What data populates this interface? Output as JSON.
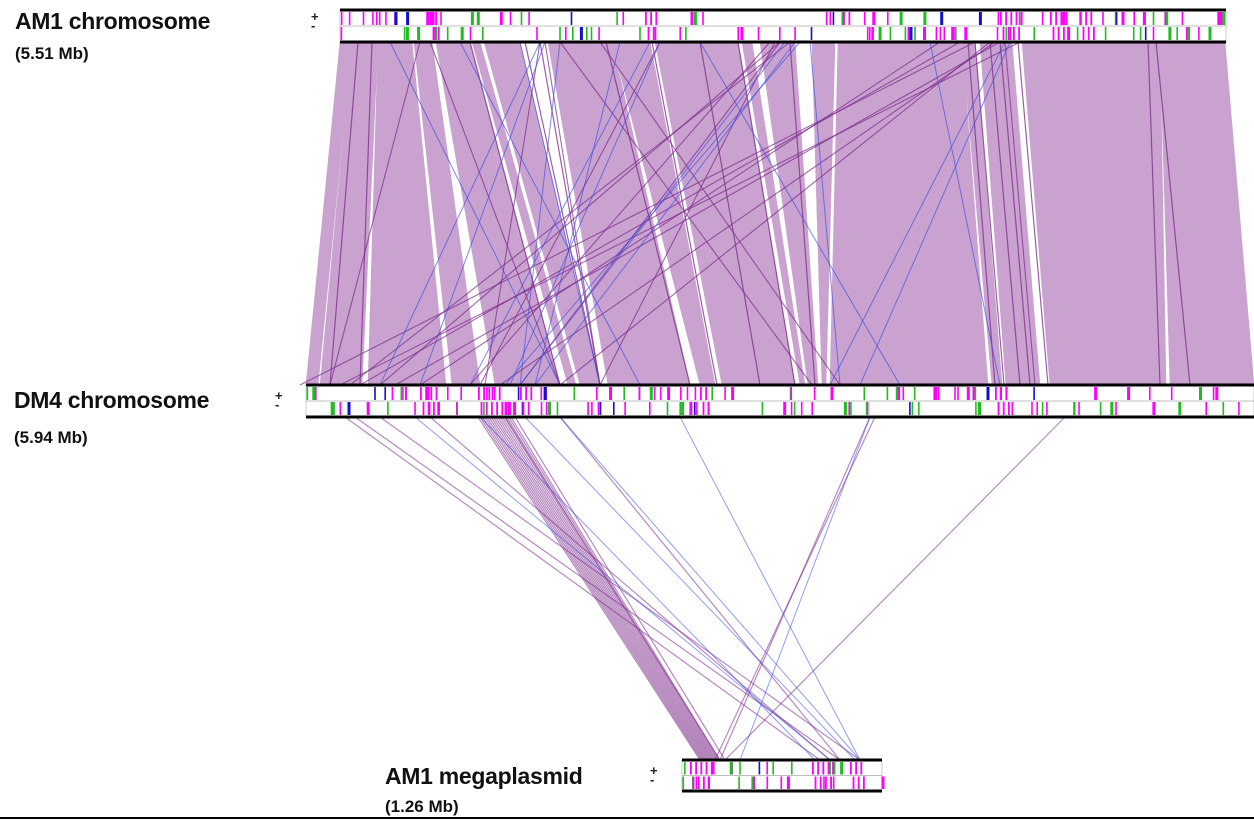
{
  "genomes": [
    {
      "id": "am1-chromosome",
      "title": "AM1 chromosome",
      "size": "(5.51 Mb)"
    },
    {
      "id": "dm4-chromosome",
      "title": "DM4 chromosome",
      "size": "(5.94 Mb)"
    },
    {
      "id": "am1-megaplasmid",
      "title": "AM1 megaplasmid",
      "size": "(1.26 Mb)"
    }
  ],
  "strand_labels": {
    "plus": "+",
    "minus": "-"
  },
  "colors": {
    "synteny_fill": "#c9a2cf",
    "forward_match": "#7b2a8a",
    "reverse_match": "#3b4fe0",
    "feature_magenta": "#ff00ff",
    "feature_green": "#22bb22",
    "feature_blue": "#1111cc",
    "backbone": "#000000"
  }
}
